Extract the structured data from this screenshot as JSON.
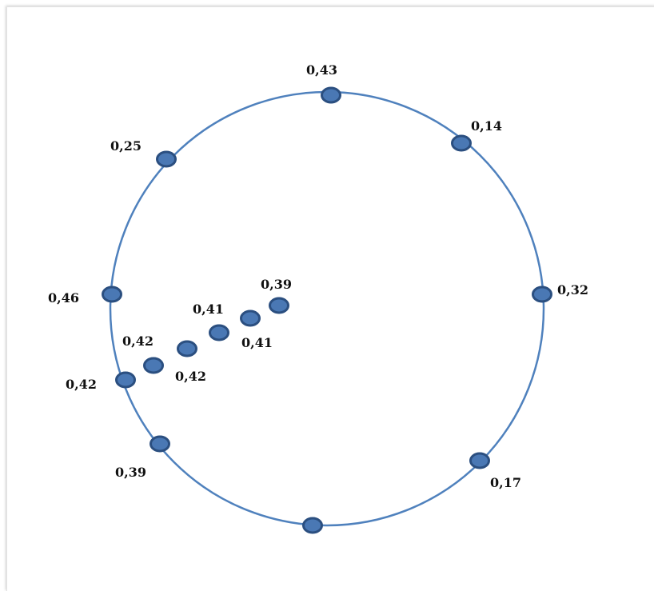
{
  "diagram": {
    "colors": {
      "ring": "#4f81bd",
      "node_fill": "#4a78b4",
      "node_stroke": "#2b4f80",
      "label": "#111111"
    },
    "nodes": [
      {
        "id": "n01",
        "label": "0,43"
      },
      {
        "id": "n02",
        "label": "0,14"
      },
      {
        "id": "n03",
        "label": "0,32"
      },
      {
        "id": "n04",
        "label": "0,17"
      },
      {
        "id": "n05",
        "label": ""
      },
      {
        "id": "n06",
        "label": "0,39"
      },
      {
        "id": "n07",
        "label": "0,42"
      },
      {
        "id": "n08",
        "label": "0,46"
      },
      {
        "id": "n09",
        "label": "0,25"
      },
      {
        "id": "n10",
        "label": "0,42"
      },
      {
        "id": "n11",
        "label": "0,42"
      },
      {
        "id": "n12",
        "label": "0,41"
      },
      {
        "id": "n13",
        "label": "0,41"
      },
      {
        "id": "n14",
        "label": "0,39"
      }
    ]
  }
}
